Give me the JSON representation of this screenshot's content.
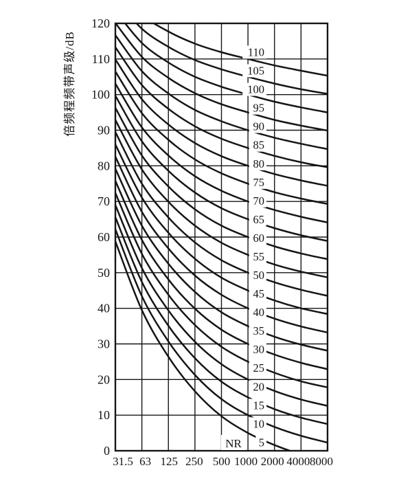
{
  "chart_data": {
    "type": "line",
    "title": "",
    "ylabel": "倍频程频带声级/dB",
    "xlabel": "",
    "family_label": "NR",
    "x_scale": "log-octave",
    "x_tick_labels": [
      "31.5",
      "63",
      "125",
      "250",
      "500",
      "1000",
      "2000",
      "4000",
      "8000"
    ],
    "x_frequencies_hz": [
      31.5,
      63,
      125,
      250,
      500,
      1000,
      2000,
      4000,
      8000
    ],
    "y_tick_labels": [
      "0",
      "10",
      "20",
      "30",
      "40",
      "50",
      "60",
      "70",
      "80",
      "90",
      "100",
      "110",
      "120"
    ],
    "y_ticks": [
      0,
      10,
      20,
      30,
      40,
      50,
      60,
      70,
      80,
      90,
      100,
      110,
      120
    ],
    "ylim": [
      0,
      120
    ],
    "grid": "on",
    "legend": "inline-curve-labels",
    "ink_color": "#151515",
    "background_color": "#ffffff",
    "series": [
      {
        "name": "5",
        "values": [
          58.8,
          39.5,
          26.4,
          16.7,
          9.7,
          5.0,
          1.6,
          -1.0,
          -2.9
        ]
      },
      {
        "name": "10",
        "values": [
          62.2,
          43.4,
          30.7,
          21.3,
          14.5,
          10.0,
          6.7,
          4.2,
          2.3
        ]
      },
      {
        "name": "15",
        "values": [
          65.6,
          47.4,
          35.1,
          26.0,
          19.4,
          15.0,
          11.7,
          9.3,
          7.5
        ]
      },
      {
        "name": "20",
        "values": [
          69.0,
          51.3,
          39.4,
          30.6,
          24.3,
          20.0,
          16.8,
          14.4,
          12.6
        ]
      },
      {
        "name": "25",
        "values": [
          72.4,
          55.3,
          43.8,
          35.3,
          29.2,
          25.0,
          21.9,
          19.5,
          17.8
        ]
      },
      {
        "name": "30",
        "values": [
          75.8,
          59.2,
          48.1,
          39.9,
          34.0,
          30.0,
          27.0,
          24.7,
          22.9
        ]
      },
      {
        "name": "35",
        "values": [
          79.2,
          63.2,
          52.5,
          44.6,
          38.9,
          35.0,
          32.0,
          29.8,
          28.1
        ]
      },
      {
        "name": "40",
        "values": [
          82.6,
          67.1,
          56.8,
          49.2,
          43.8,
          40.0,
          37.1,
          34.9,
          33.2
        ]
      },
      {
        "name": "45",
        "values": [
          86.0,
          71.1,
          61.2,
          53.9,
          48.6,
          45.0,
          42.2,
          40.0,
          38.4
        ]
      },
      {
        "name": "50",
        "values": [
          89.5,
          75.0,
          65.5,
          58.5,
          53.5,
          50.0,
          47.3,
          45.2,
          43.5
        ]
      },
      {
        "name": "55",
        "values": [
          92.9,
          79.0,
          69.9,
          63.2,
          58.4,
          55.0,
          52.3,
          50.3,
          48.7
        ]
      },
      {
        "name": "60",
        "values": [
          96.3,
          82.9,
          74.2,
          67.8,
          63.2,
          60.0,
          57.4,
          55.4,
          53.8
        ]
      },
      {
        "name": "65",
        "values": [
          99.7,
          86.9,
          78.6,
          72.5,
          68.1,
          65.0,
          62.5,
          60.5,
          58.9
        ]
      },
      {
        "name": "70",
        "values": [
          103.1,
          90.8,
          82.9,
          77.1,
          73.0,
          70.0,
          67.6,
          65.7,
          64.1
        ]
      },
      {
        "name": "75",
        "values": [
          106.5,
          94.8,
          87.3,
          81.8,
          77.9,
          75.0,
          72.6,
          70.8,
          69.3
        ]
      },
      {
        "name": "80",
        "values": [
          109.9,
          98.7,
          91.6,
          86.4,
          82.7,
          80.0,
          77.7,
          75.9,
          74.4
        ]
      },
      {
        "name": "85",
        "values": [
          113.3,
          102.7,
          96.0,
          91.1,
          87.6,
          85.0,
          82.8,
          81.0,
          79.6
        ]
      },
      {
        "name": "90",
        "values": [
          116.7,
          106.6,
          100.3,
          95.7,
          92.5,
          90.0,
          87.9,
          86.2,
          84.7
        ]
      },
      {
        "name": "95",
        "values": [
          120.1,
          110.6,
          104.7,
          100.4,
          97.3,
          95.0,
          92.9,
          91.3,
          89.9
        ]
      },
      {
        "name": "100",
        "values": [
          123.5,
          114.5,
          109.0,
          105.0,
          102.2,
          100.0,
          98.0,
          96.4,
          95.0
        ]
      },
      {
        "name": "105",
        "values": [
          126.9,
          118.5,
          113.4,
          109.7,
          107.1,
          105.0,
          103.1,
          101.5,
          100.2
        ]
      },
      {
        "name": "110",
        "values": [
          130.3,
          122.4,
          117.7,
          114.3,
          111.9,
          110.0,
          108.2,
          106.7,
          105.3
        ]
      }
    ]
  }
}
